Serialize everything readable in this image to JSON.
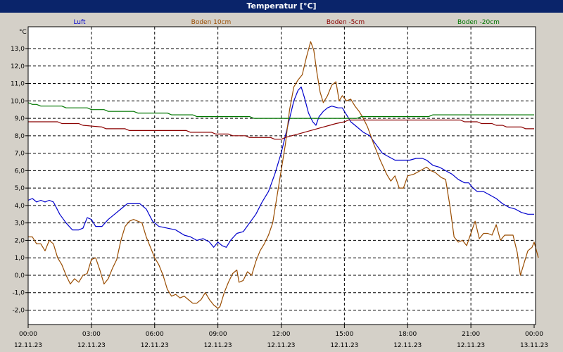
{
  "window": {
    "title": "Temperatur [°C]"
  },
  "chart_data": {
    "type": "line",
    "title": "Temperatur [°C]",
    "ylabel": "°C",
    "ylim": [
      -3,
      14.5
    ],
    "xlim": [
      0,
      24
    ],
    "grid": true,
    "legend": "top",
    "y_ticks": [
      {
        "v": -2,
        "label": "-2,0"
      },
      {
        "v": -1,
        "label": "-1,0"
      },
      {
        "v": 0,
        "label": "0,0"
      },
      {
        "v": 1,
        "label": "1,0"
      },
      {
        "v": 2,
        "label": "2,0"
      },
      {
        "v": 3,
        "label": "3,0"
      },
      {
        "v": 4,
        "label": "4,0"
      },
      {
        "v": 5,
        "label": "5,0"
      },
      {
        "v": 6,
        "label": "6,0"
      },
      {
        "v": 7,
        "label": "7,0"
      },
      {
        "v": 8,
        "label": "8,0"
      },
      {
        "v": 9,
        "label": "9,0"
      },
      {
        "v": 10,
        "label": "10,0"
      },
      {
        "v": 11,
        "label": "11,0"
      },
      {
        "v": 12,
        "label": "12,0"
      },
      {
        "v": 13,
        "label": "13,0"
      }
    ],
    "x_ticks": [
      {
        "v": 0,
        "time": "00:00",
        "date": "12.11.23"
      },
      {
        "v": 3,
        "time": "03:00",
        "date": "12.11.23"
      },
      {
        "v": 6,
        "time": "06:00",
        "date": "12.11.23"
      },
      {
        "v": 9,
        "time": "09:00",
        "date": "12.11.23"
      },
      {
        "v": 12,
        "time": "12:00",
        "date": "12.11.23"
      },
      {
        "v": 15,
        "time": "15:00",
        "date": "12.11.23"
      },
      {
        "v": 18,
        "time": "18:00",
        "date": "12.11.23"
      },
      {
        "v": 21,
        "time": "21:00",
        "date": "12.11.23"
      },
      {
        "v": 24,
        "time": "00:00",
        "date": "13.11.23"
      }
    ],
    "series": [
      {
        "name": "Luft",
        "color": "#0000CC",
        "points": [
          [
            0,
            4.3
          ],
          [
            0.2,
            4.4
          ],
          [
            0.4,
            4.2
          ],
          [
            0.6,
            4.3
          ],
          [
            0.8,
            4.2
          ],
          [
            1.0,
            4.3
          ],
          [
            1.2,
            4.2
          ],
          [
            1.5,
            3.5
          ],
          [
            1.8,
            3.0
          ],
          [
            2.1,
            2.6
          ],
          [
            2.4,
            2.6
          ],
          [
            2.6,
            2.7
          ],
          [
            2.8,
            3.3
          ],
          [
            3.0,
            3.2
          ],
          [
            3.2,
            2.8
          ],
          [
            3.5,
            2.8
          ],
          [
            3.8,
            3.2
          ],
          [
            4.1,
            3.5
          ],
          [
            4.4,
            3.8
          ],
          [
            4.7,
            4.1
          ],
          [
            5.0,
            4.1
          ],
          [
            5.3,
            4.1
          ],
          [
            5.6,
            3.8
          ],
          [
            5.9,
            3.1
          ],
          [
            6.2,
            2.8
          ],
          [
            6.6,
            2.7
          ],
          [
            7.0,
            2.6
          ],
          [
            7.4,
            2.3
          ],
          [
            7.7,
            2.2
          ],
          [
            8.0,
            2.0
          ],
          [
            8.3,
            2.1
          ],
          [
            8.6,
            1.9
          ],
          [
            8.8,
            1.6
          ],
          [
            9.0,
            1.9
          ],
          [
            9.2,
            1.7
          ],
          [
            9.4,
            1.6
          ],
          [
            9.6,
            2.0
          ],
          [
            9.9,
            2.4
          ],
          [
            10.2,
            2.5
          ],
          [
            10.5,
            3.0
          ],
          [
            10.8,
            3.5
          ],
          [
            11.1,
            4.2
          ],
          [
            11.4,
            4.8
          ],
          [
            11.7,
            5.8
          ],
          [
            12.0,
            7.0
          ],
          [
            12.2,
            8.0
          ],
          [
            12.4,
            9.0
          ],
          [
            12.6,
            10.0
          ],
          [
            12.8,
            10.6
          ],
          [
            12.95,
            10.8
          ],
          [
            13.1,
            10.2
          ],
          [
            13.3,
            9.3
          ],
          [
            13.5,
            8.8
          ],
          [
            13.65,
            8.6
          ],
          [
            13.8,
            9.1
          ],
          [
            14.0,
            9.4
          ],
          [
            14.2,
            9.6
          ],
          [
            14.4,
            9.7
          ],
          [
            14.7,
            9.6
          ],
          [
            14.9,
            9.6
          ],
          [
            15.1,
            9.2
          ],
          [
            15.3,
            8.8
          ],
          [
            15.6,
            8.5
          ],
          [
            15.9,
            8.2
          ],
          [
            16.2,
            8.0
          ],
          [
            16.5,
            7.5
          ],
          [
            16.8,
            7.0
          ],
          [
            17.1,
            6.8
          ],
          [
            17.4,
            6.6
          ],
          [
            17.8,
            6.6
          ],
          [
            18.1,
            6.6
          ],
          [
            18.4,
            6.7
          ],
          [
            18.7,
            6.7
          ],
          [
            18.9,
            6.6
          ],
          [
            19.2,
            6.3
          ],
          [
            19.5,
            6.2
          ],
          [
            19.8,
            6.0
          ],
          [
            20.1,
            5.8
          ],
          [
            20.4,
            5.5
          ],
          [
            20.7,
            5.3
          ],
          [
            20.9,
            5.3
          ],
          [
            21.1,
            5.0
          ],
          [
            21.3,
            4.8
          ],
          [
            21.6,
            4.8
          ],
          [
            21.9,
            4.6
          ],
          [
            22.2,
            4.4
          ],
          [
            22.5,
            4.1
          ],
          [
            22.8,
            3.9
          ],
          [
            23.1,
            3.8
          ],
          [
            23.4,
            3.6
          ],
          [
            23.7,
            3.5
          ],
          [
            24.0,
            3.5
          ]
        ]
      },
      {
        "name": "Boden 10cm",
        "color": "#994C00",
        "points": [
          [
            0,
            2.2
          ],
          [
            0.2,
            2.2
          ],
          [
            0.4,
            1.8
          ],
          [
            0.6,
            1.8
          ],
          [
            0.8,
            1.4
          ],
          [
            1.0,
            2.0
          ],
          [
            1.2,
            1.8
          ],
          [
            1.4,
            1.0
          ],
          [
            1.6,
            0.6
          ],
          [
            1.8,
            0.0
          ],
          [
            2.0,
            -0.5
          ],
          [
            2.2,
            -0.2
          ],
          [
            2.4,
            -0.4
          ],
          [
            2.6,
            0.0
          ],
          [
            2.8,
            0.1
          ],
          [
            3.0,
            0.9
          ],
          [
            3.2,
            1.0
          ],
          [
            3.4,
            0.3
          ],
          [
            3.6,
            -0.5
          ],
          [
            3.8,
            -0.2
          ],
          [
            4.0,
            0.4
          ],
          [
            4.2,
            0.9
          ],
          [
            4.4,
            2.0
          ],
          [
            4.6,
            2.8
          ],
          [
            4.8,
            3.1
          ],
          [
            5.0,
            3.2
          ],
          [
            5.2,
            3.1
          ],
          [
            5.4,
            3.0
          ],
          [
            5.6,
            2.2
          ],
          [
            5.8,
            1.6
          ],
          [
            6.0,
            1.0
          ],
          [
            6.2,
            0.6
          ],
          [
            6.4,
            0.0
          ],
          [
            6.6,
            -0.8
          ],
          [
            6.8,
            -1.2
          ],
          [
            7.0,
            -1.1
          ],
          [
            7.2,
            -1.3
          ],
          [
            7.4,
            -1.2
          ],
          [
            7.6,
            -1.4
          ],
          [
            7.8,
            -1.6
          ],
          [
            8.0,
            -1.6
          ],
          [
            8.2,
            -1.4
          ],
          [
            8.4,
            -1.0
          ],
          [
            8.6,
            -1.4
          ],
          [
            8.8,
            -1.7
          ],
          [
            9.0,
            -1.9
          ],
          [
            9.1,
            -1.8
          ],
          [
            9.3,
            -1.0
          ],
          [
            9.5,
            -0.4
          ],
          [
            9.7,
            0.1
          ],
          [
            9.9,
            0.3
          ],
          [
            10.0,
            -0.4
          ],
          [
            10.2,
            -0.3
          ],
          [
            10.4,
            0.2
          ],
          [
            10.6,
            0.0
          ],
          [
            10.8,
            0.8
          ],
          [
            11.0,
            1.4
          ],
          [
            11.2,
            1.8
          ],
          [
            11.4,
            2.3
          ],
          [
            11.6,
            3.0
          ],
          [
            11.8,
            4.5
          ],
          [
            12.0,
            6.0
          ],
          [
            12.2,
            7.5
          ],
          [
            12.4,
            9.5
          ],
          [
            12.6,
            10.8
          ],
          [
            12.8,
            11.2
          ],
          [
            13.0,
            11.5
          ],
          [
            13.2,
            12.5
          ],
          [
            13.4,
            13.4
          ],
          [
            13.55,
            12.9
          ],
          [
            13.7,
            11.6
          ],
          [
            13.85,
            10.5
          ],
          [
            14.0,
            9.9
          ],
          [
            14.2,
            10.3
          ],
          [
            14.4,
            10.9
          ],
          [
            14.6,
            11.1
          ],
          [
            14.75,
            10.0
          ],
          [
            14.9,
            10.3
          ],
          [
            15.1,
            10.0
          ],
          [
            15.3,
            10.1
          ],
          [
            15.5,
            9.7
          ],
          [
            15.7,
            9.4
          ],
          [
            15.9,
            9.0
          ],
          [
            16.1,
            8.5
          ],
          [
            16.4,
            7.5
          ],
          [
            16.7,
            6.6
          ],
          [
            17.0,
            5.8
          ],
          [
            17.2,
            5.4
          ],
          [
            17.4,
            5.7
          ],
          [
            17.6,
            5.0
          ],
          [
            17.8,
            5.0
          ],
          [
            18.0,
            5.7
          ],
          [
            18.3,
            5.8
          ],
          [
            18.6,
            6.0
          ],
          [
            18.9,
            6.2
          ],
          [
            19.1,
            6.0
          ],
          [
            19.3,
            5.9
          ],
          [
            19.6,
            5.6
          ],
          [
            19.8,
            5.5
          ],
          [
            20.0,
            4.0
          ],
          [
            20.2,
            2.2
          ],
          [
            20.4,
            1.9
          ],
          [
            20.6,
            2.0
          ],
          [
            20.8,
            1.7
          ],
          [
            21.0,
            2.4
          ],
          [
            21.2,
            3.1
          ],
          [
            21.4,
            2.1
          ],
          [
            21.6,
            2.4
          ],
          [
            21.8,
            2.4
          ],
          [
            22.0,
            2.3
          ],
          [
            22.2,
            2.9
          ],
          [
            22.4,
            2.0
          ],
          [
            22.6,
            2.3
          ],
          [
            22.8,
            2.3
          ],
          [
            23.0,
            2.3
          ],
          [
            23.2,
            1.3
          ],
          [
            23.35,
            0.0
          ],
          [
            23.5,
            0.6
          ],
          [
            23.7,
            1.4
          ],
          [
            23.9,
            1.6
          ],
          [
            24.0,
            1.9
          ],
          [
            24.2,
            1.0
          ]
        ]
      },
      {
        "name": "Boden -5cm",
        "color": "#8B0000",
        "points": [
          [
            0,
            8.8
          ],
          [
            0.6,
            8.8
          ],
          [
            1.4,
            8.8
          ],
          [
            1.6,
            8.7
          ],
          [
            2.4,
            8.7
          ],
          [
            2.6,
            8.6
          ],
          [
            3.5,
            8.5
          ],
          [
            3.7,
            8.4
          ],
          [
            4.6,
            8.4
          ],
          [
            4.8,
            8.3
          ],
          [
            7.5,
            8.3
          ],
          [
            7.7,
            8.2
          ],
          [
            8.7,
            8.2
          ],
          [
            8.9,
            8.1
          ],
          [
            9.5,
            8.1
          ],
          [
            9.7,
            8.0
          ],
          [
            10.3,
            8.0
          ],
          [
            10.5,
            7.9
          ],
          [
            11.5,
            7.9
          ],
          [
            11.7,
            7.8
          ],
          [
            12.0,
            7.8
          ],
          [
            12.2,
            7.9
          ],
          [
            12.5,
            8.0
          ],
          [
            12.8,
            8.1
          ],
          [
            13.1,
            8.2
          ],
          [
            13.4,
            8.3
          ],
          [
            13.7,
            8.4
          ],
          [
            14.0,
            8.5
          ],
          [
            14.3,
            8.6
          ],
          [
            14.6,
            8.7
          ],
          [
            15.0,
            8.8
          ],
          [
            15.2,
            8.9
          ],
          [
            20.5,
            8.9
          ],
          [
            20.7,
            8.8
          ],
          [
            21.3,
            8.8
          ],
          [
            21.5,
            8.7
          ],
          [
            22.0,
            8.7
          ],
          [
            22.2,
            8.6
          ],
          [
            22.5,
            8.6
          ],
          [
            22.7,
            8.5
          ],
          [
            23.4,
            8.5
          ],
          [
            23.6,
            8.4
          ],
          [
            24.0,
            8.4
          ]
        ]
      },
      {
        "name": "Boden -20cm",
        "color": "#007700",
        "points": [
          [
            0,
            9.9
          ],
          [
            0.2,
            9.8
          ],
          [
            0.4,
            9.8
          ],
          [
            0.6,
            9.7
          ],
          [
            1.6,
            9.7
          ],
          [
            1.8,
            9.6
          ],
          [
            2.8,
            9.6
          ],
          [
            3.0,
            9.5
          ],
          [
            3.6,
            9.5
          ],
          [
            3.8,
            9.4
          ],
          [
            5.0,
            9.4
          ],
          [
            5.2,
            9.3
          ],
          [
            6.6,
            9.3
          ],
          [
            6.8,
            9.2
          ],
          [
            7.8,
            9.2
          ],
          [
            8.0,
            9.1
          ],
          [
            10.5,
            9.1
          ],
          [
            10.7,
            9.0
          ],
          [
            15.6,
            9.0
          ],
          [
            15.8,
            9.1
          ],
          [
            19.0,
            9.1
          ],
          [
            19.2,
            9.2
          ],
          [
            24.0,
            9.2
          ]
        ]
      }
    ]
  }
}
